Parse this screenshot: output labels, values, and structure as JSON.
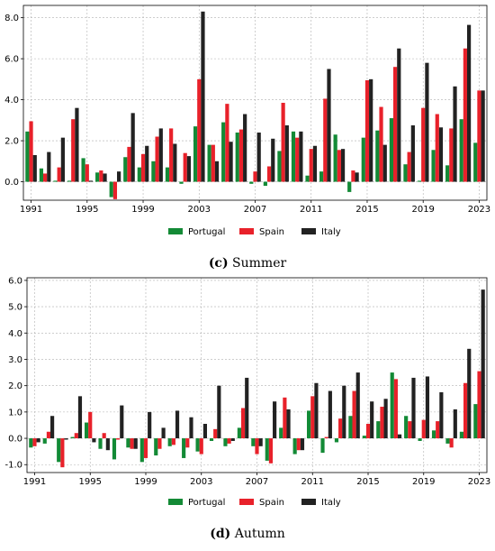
{
  "colors": {
    "Portugal": "#138a36",
    "Spain": "#e8212a",
    "Italy": "#222222"
  },
  "chart_data": [
    {
      "type": "bar",
      "caption_letter": "(c)",
      "caption_text": "Summer",
      "x": [
        1991,
        1992,
        1993,
        1994,
        1995,
        1996,
        1997,
        1998,
        1999,
        2000,
        2001,
        2002,
        2003,
        2004,
        2005,
        2006,
        2007,
        2008,
        2009,
        2010,
        2011,
        2012,
        2013,
        2014,
        2015,
        2016,
        2017,
        2018,
        2019,
        2020,
        2021,
        2022,
        2023
      ],
      "xticks": [
        1991,
        1995,
        1999,
        2003,
        2007,
        2011,
        2015,
        2019,
        2023
      ],
      "yticks": [
        0.0,
        2.0,
        4.0,
        6.0,
        8.0
      ],
      "ylim": [
        -0.9,
        8.6
      ],
      "grid": true,
      "legend_position": "bottom",
      "series": [
        {
          "name": "Portugal",
          "values": [
            2.45,
            0.65,
            0.05,
            0.05,
            1.15,
            0.45,
            -0.75,
            1.2,
            0.7,
            1.0,
            0.7,
            -0.1,
            2.7,
            1.8,
            2.9,
            2.4,
            -0.1,
            -0.2,
            1.5,
            2.45,
            0.3,
            0.5,
            2.3,
            -0.5,
            2.15,
            2.5,
            3.1,
            0.85,
            0.05,
            1.55,
            0.8,
            3.05,
            1.9
          ]
        },
        {
          "name": "Spain",
          "values": [
            2.95,
            0.4,
            0.7,
            3.05,
            0.85,
            0.55,
            -0.85,
            1.7,
            1.35,
            2.2,
            2.6,
            1.4,
            5.0,
            1.8,
            3.8,
            2.55,
            0.5,
            0.75,
            3.85,
            2.15,
            1.6,
            4.05,
            1.55,
            0.55,
            4.95,
            3.65,
            5.6,
            1.45,
            3.6,
            3.3,
            2.6,
            6.5,
            4.45
          ]
        },
        {
          "name": "Italy",
          "values": [
            1.3,
            1.45,
            2.15,
            3.6,
            0.05,
            0.4,
            0.5,
            3.35,
            1.75,
            2.6,
            1.85,
            1.25,
            8.3,
            1.0,
            1.95,
            3.3,
            2.4,
            2.1,
            2.75,
            2.45,
            1.75,
            5.5,
            1.6,
            0.45,
            5.0,
            1.8,
            6.5,
            2.75,
            5.8,
            2.65,
            4.65,
            7.65,
            4.45
          ]
        }
      ]
    },
    {
      "type": "bar",
      "caption_letter": "(d)",
      "caption_text": "Autumn",
      "x": [
        1991,
        1992,
        1993,
        1994,
        1995,
        1996,
        1997,
        1998,
        1999,
        2000,
        2001,
        2002,
        2003,
        2004,
        2005,
        2006,
        2007,
        2008,
        2009,
        2010,
        2011,
        2012,
        2013,
        2014,
        2015,
        2016,
        2017,
        2018,
        2019,
        2020,
        2021,
        2022,
        2023
      ],
      "xticks": [
        1991,
        1995,
        1999,
        2003,
        2007,
        2011,
        2015,
        2019,
        2023
      ],
      "yticks": [
        -1.0,
        0.0,
        1.0,
        2.0,
        3.0,
        4.0,
        5.0,
        6.0
      ],
      "ylim": [
        -1.3,
        6.1
      ],
      "grid": true,
      "legend_position": "bottom",
      "series": [
        {
          "name": "Portugal",
          "values": [
            -0.35,
            -0.2,
            -0.9,
            0.05,
            0.6,
            -0.4,
            -0.8,
            -0.35,
            -0.9,
            -0.65,
            -0.3,
            -0.75,
            -0.5,
            -0.1,
            -0.3,
            0.4,
            -0.3,
            -0.85,
            0.4,
            -0.6,
            1.05,
            -0.55,
            -0.15,
            0.85,
            0.1,
            0.65,
            2.5,
            0.85,
            -0.1,
            0.3,
            -0.2,
            0.25,
            1.3
          ]
        },
        {
          "name": "Spain",
          "values": [
            -0.3,
            0.25,
            -1.1,
            0.2,
            1.0,
            0.2,
            -0.05,
            -0.4,
            -0.75,
            -0.4,
            -0.25,
            -0.35,
            -0.6,
            0.35,
            -0.2,
            1.15,
            -0.6,
            -0.95,
            1.55,
            -0.45,
            1.6,
            0.05,
            0.75,
            1.8,
            0.55,
            1.2,
            2.25,
            0.65,
            0.7,
            0.65,
            -0.35,
            2.1,
            2.55
          ]
        },
        {
          "name": "Italy",
          "values": [
            -0.15,
            0.85,
            -0.05,
            1.6,
            -0.15,
            -0.45,
            1.25,
            -0.4,
            1.0,
            0.4,
            1.05,
            0.8,
            0.55,
            2.0,
            -0.1,
            2.3,
            -0.3,
            1.4,
            1.1,
            -0.45,
            2.1,
            1.8,
            2.0,
            2.5,
            1.4,
            1.5,
            0.15,
            2.3,
            2.35,
            1.75,
            1.1,
            3.4,
            5.65
          ]
        }
      ]
    }
  ]
}
